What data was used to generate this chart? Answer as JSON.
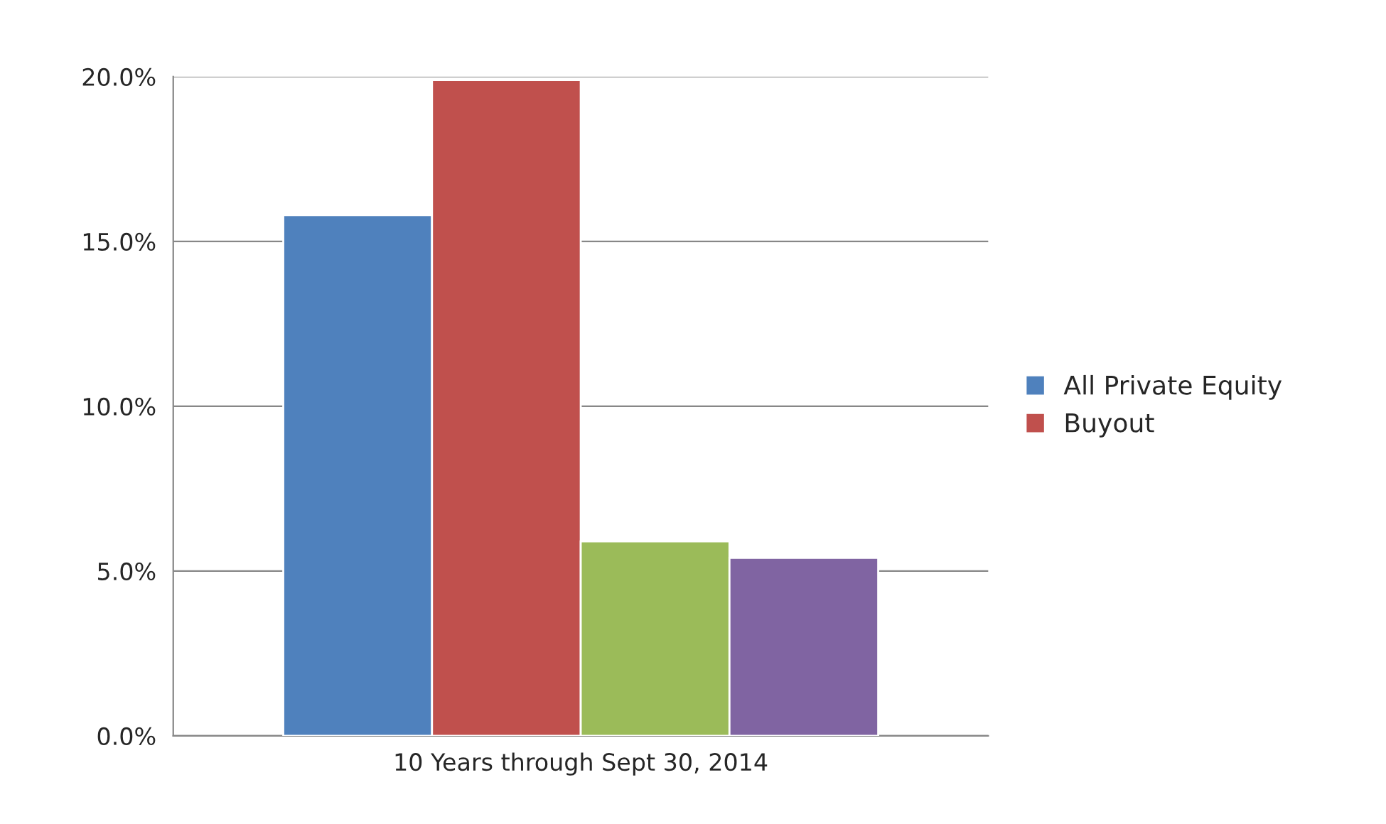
{
  "chart_data": {
    "type": "bar",
    "categories": [
      "10 Years through Sept 30, 2014"
    ],
    "series": [
      {
        "name": "All Private Equity",
        "color": "#4f81bd",
        "values": [
          15.8
        ]
      },
      {
        "name": "Buyout",
        "color": "#c0504d",
        "values": [
          19.9
        ]
      },
      {
        "color": "#9bbb59",
        "values": [
          5.9
        ]
      },
      {
        "color": "#8064a2",
        "values": [
          5.4
        ]
      }
    ],
    "ylim": [
      0,
      20
    ],
    "yticks": [
      {
        "value": 0,
        "label": "0.0%"
      },
      {
        "value": 5,
        "label": "5.0%"
      },
      {
        "value": 10,
        "label": "10.0%"
      },
      {
        "value": 15,
        "label": "15.0%"
      },
      {
        "value": 20,
        "label": "20.0%"
      }
    ],
    "grid": "y",
    "legend": "right"
  }
}
